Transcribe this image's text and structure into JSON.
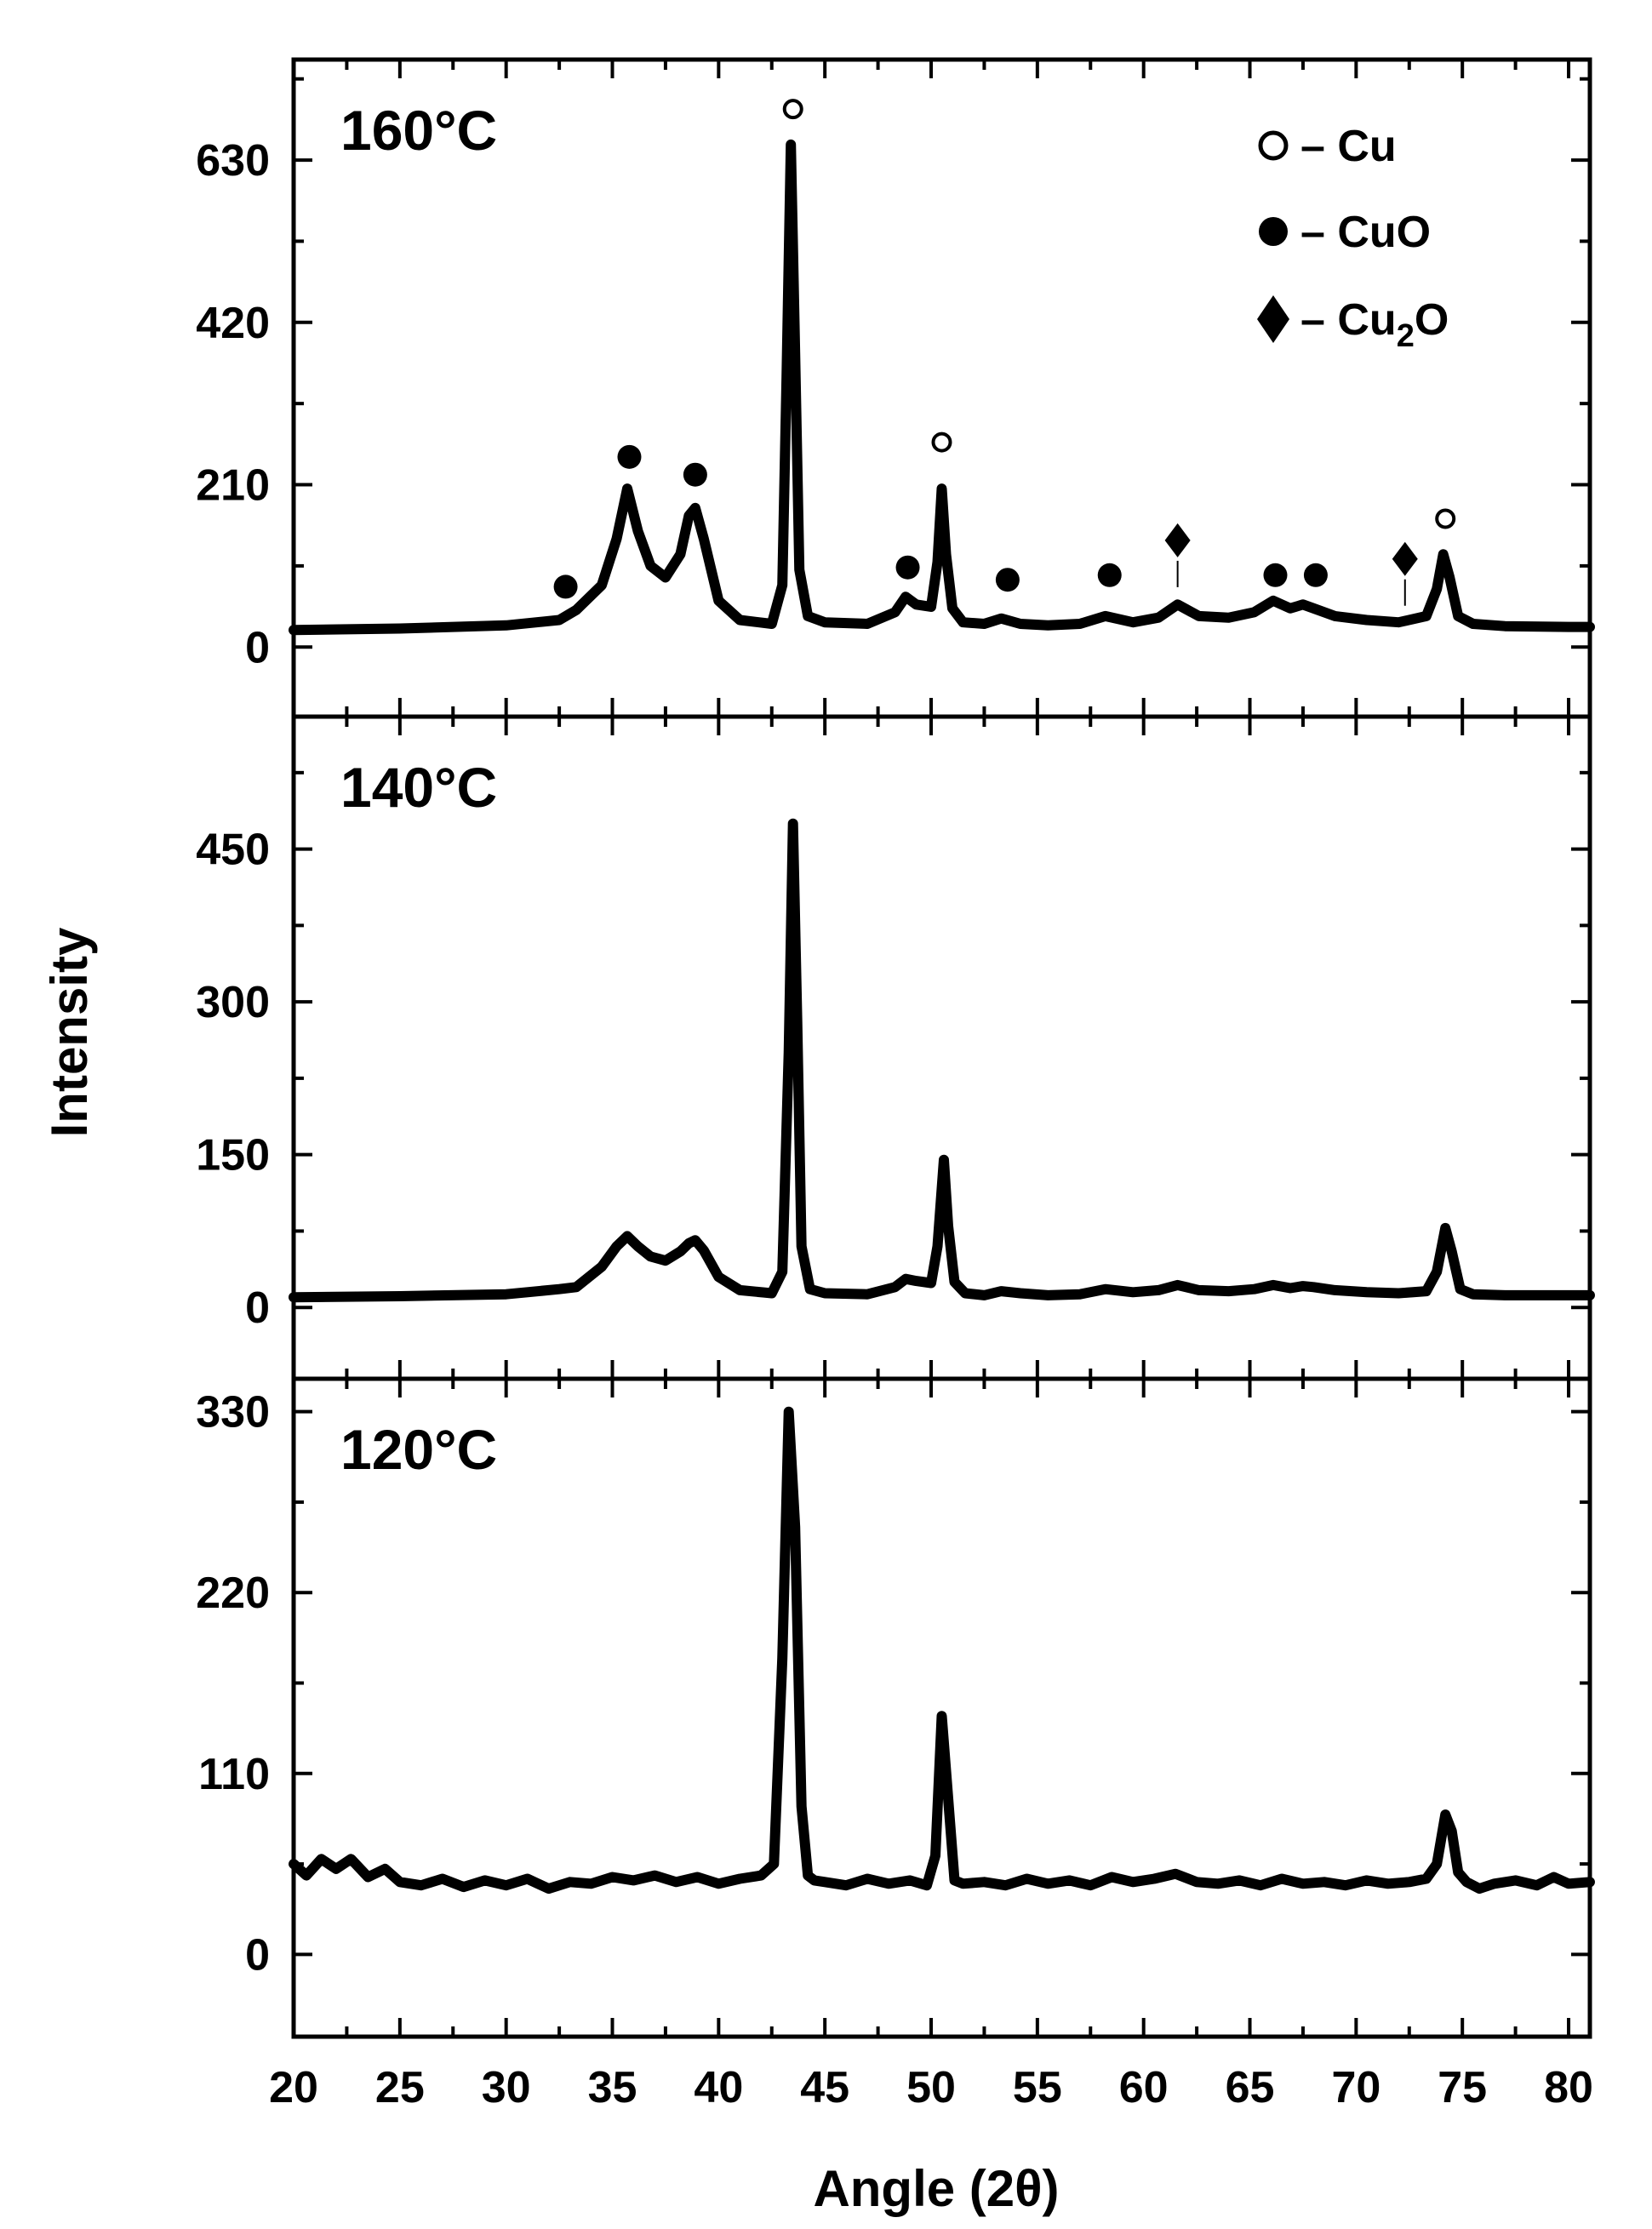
{
  "chart_data": {
    "type": "line",
    "layout": "three vertically stacked panels sharing the x axis",
    "xlabel": "Angle (2θ)",
    "ylabel": "Intensity",
    "xlim": [
      20,
      81
    ],
    "xticks": [
      20,
      25,
      30,
      35,
      40,
      45,
      50,
      55,
      60,
      65,
      70,
      75,
      80
    ],
    "grid": false,
    "legend": {
      "placement": "top-right of top panel",
      "entries": [
        {
          "marker": "open-circle",
          "label": "– Cu"
        },
        {
          "marker": "filled-circle",
          "label": "– CuO"
        },
        {
          "marker": "filled-diamond",
          "label_main": "– Cu",
          "label_sub": "2",
          "label_tail": "O"
        }
      ]
    },
    "colors": {
      "line": "#000000",
      "background": "#ffffff"
    },
    "panels": [
      {
        "label": "160°C",
        "ylim": [
          -90,
          760
        ],
        "yticks": [
          0,
          210,
          420,
          630
        ],
        "series": {
          "x": [
            20,
            25,
            30,
            32.5,
            33.3,
            34.5,
            35.2,
            35.7,
            36.2,
            36.8,
            37.5,
            38.2,
            38.6,
            38.9,
            39.3,
            40,
            41,
            42.5,
            43.0,
            43.2,
            43.4,
            43.6,
            43.8,
            44.2,
            45,
            47,
            48.3,
            48.8,
            49.3,
            50.0,
            50.3,
            50.5,
            50.7,
            51.0,
            51.5,
            52.5,
            53.3,
            54.2,
            55.5,
            57,
            58.2,
            59.5,
            60.7,
            61.6,
            62.6,
            64,
            65.2,
            66.1,
            66.9,
            67.5,
            68.0,
            69.0,
            70.5,
            72,
            73.3,
            73.8,
            74.1,
            74.4,
            74.8,
            75.5,
            77,
            80,
            81
          ],
          "y": [
            22,
            24,
            28,
            35,
            48,
            80,
            140,
            205,
            150,
            105,
            90,
            120,
            170,
            180,
            140,
            60,
            35,
            30,
            80,
            350,
            650,
            380,
            100,
            40,
            32,
            30,
            45,
            65,
            55,
            52,
            110,
            205,
            120,
            50,
            32,
            30,
            37,
            30,
            28,
            30,
            40,
            32,
            38,
            55,
            40,
            38,
            45,
            60,
            50,
            55,
            50,
            40,
            35,
            32,
            40,
            75,
            120,
            90,
            40,
            30,
            27,
            26,
            26
          ]
        },
        "peak_markers": [
          {
            "x": 32.8,
            "y": 78,
            "type": "filled-circle"
          },
          {
            "x": 35.8,
            "y": 246,
            "type": "filled-circle"
          },
          {
            "x": 38.9,
            "y": 223,
            "type": "filled-circle"
          },
          {
            "x": 43.5,
            "y": 696,
            "type": "open-circle"
          },
          {
            "x": 48.9,
            "y": 103,
            "type": "filled-circle"
          },
          {
            "x": 50.5,
            "y": 265,
            "type": "open-circle"
          },
          {
            "x": 53.6,
            "y": 87,
            "type": "filled-circle"
          },
          {
            "x": 58.4,
            "y": 93,
            "type": "filled-circle"
          },
          {
            "x": 61.6,
            "y": 138,
            "type": "filled-diamond"
          },
          {
            "x": 66.2,
            "y": 93,
            "type": "filled-circle"
          },
          {
            "x": 68.1,
            "y": 93,
            "type": "filled-circle"
          },
          {
            "x": 72.3,
            "y": 114,
            "type": "filled-diamond"
          },
          {
            "x": 74.2,
            "y": 166,
            "type": "open-circle"
          }
        ]
      },
      {
        "label": "140°C",
        "ylim": [
          -70,
          580
        ],
        "yticks": [
          0,
          150,
          300,
          450
        ],
        "series": {
          "x": [
            20,
            25,
            30,
            32.5,
            33.3,
            34.5,
            35.2,
            35.7,
            36.2,
            36.8,
            37.5,
            38.2,
            38.6,
            38.9,
            39.3,
            40,
            41,
            42.5,
            43.0,
            43.3,
            43.5,
            43.7,
            43.9,
            44.3,
            45,
            47,
            48.3,
            48.8,
            49.3,
            50.0,
            50.3,
            50.6,
            50.8,
            51.1,
            51.6,
            52.5,
            53.3,
            54.2,
            55.5,
            57,
            58.2,
            59.5,
            60.7,
            61.6,
            62.6,
            64,
            65.2,
            66.1,
            66.9,
            67.5,
            68.0,
            69.0,
            70.5,
            72,
            73.3,
            73.8,
            74.2,
            74.5,
            74.9,
            75.5,
            77,
            80,
            81
          ],
          "y": [
            10,
            11,
            13,
            18,
            20,
            40,
            60,
            70,
            60,
            50,
            46,
            55,
            63,
            66,
            56,
            30,
            17,
            14,
            35,
            250,
            475,
            280,
            60,
            18,
            14,
            13,
            20,
            28,
            26,
            24,
            60,
            145,
            80,
            25,
            14,
            12,
            16,
            14,
            12,
            13,
            18,
            15,
            17,
            22,
            17,
            16,
            18,
            22,
            19,
            21,
            20,
            17,
            15,
            14,
            16,
            35,
            78,
            55,
            18,
            13,
            12,
            12,
            12
          ]
        }
      },
      {
        "label": "120°C",
        "ylim": [
          -50,
          350
        ],
        "yticks": [
          0,
          110,
          220,
          330
        ],
        "series": {
          "x": [
            20,
            20.6,
            21.3,
            22,
            22.7,
            23.5,
            24.3,
            25,
            26,
            27,
            28,
            29,
            30,
            31,
            32,
            33,
            34,
            35,
            36,
            37,
            38,
            39,
            40,
            41,
            42,
            42.6,
            43.0,
            43.3,
            43.6,
            43.9,
            44.2,
            44.5,
            45,
            46,
            47,
            48,
            49,
            49.8,
            50.2,
            50.5,
            50.8,
            51.1,
            51.5,
            52.5,
            53.5,
            54.5,
            55.5,
            56.5,
            57.5,
            58.5,
            59.5,
            60.5,
            61.5,
            62.5,
            63.5,
            64.5,
            65.5,
            66.5,
            67.5,
            68.5,
            69.5,
            70.5,
            71.5,
            72.5,
            73.3,
            73.8,
            74.2,
            74.5,
            74.8,
            75.2,
            75.8,
            76.5,
            77.5,
            78.5,
            79.3,
            80,
            81
          ],
          "y": [
            55,
            48,
            58,
            52,
            58,
            47,
            52,
            44,
            42,
            46,
            41,
            45,
            42,
            46,
            40,
            44,
            43,
            47,
            45,
            48,
            44,
            47,
            43,
            46,
            48,
            55,
            180,
            330,
            260,
            90,
            48,
            45,
            44,
            42,
            46,
            43,
            45,
            42,
            60,
            145,
            95,
            45,
            43,
            44,
            42,
            46,
            43,
            45,
            42,
            47,
            44,
            46,
            49,
            44,
            43,
            45,
            42,
            46,
            43,
            44,
            42,
            45,
            43,
            44,
            46,
            55,
            85,
            75,
            50,
            44,
            40,
            43,
            45,
            42,
            47,
            43,
            44
          ]
        }
      }
    ]
  }
}
